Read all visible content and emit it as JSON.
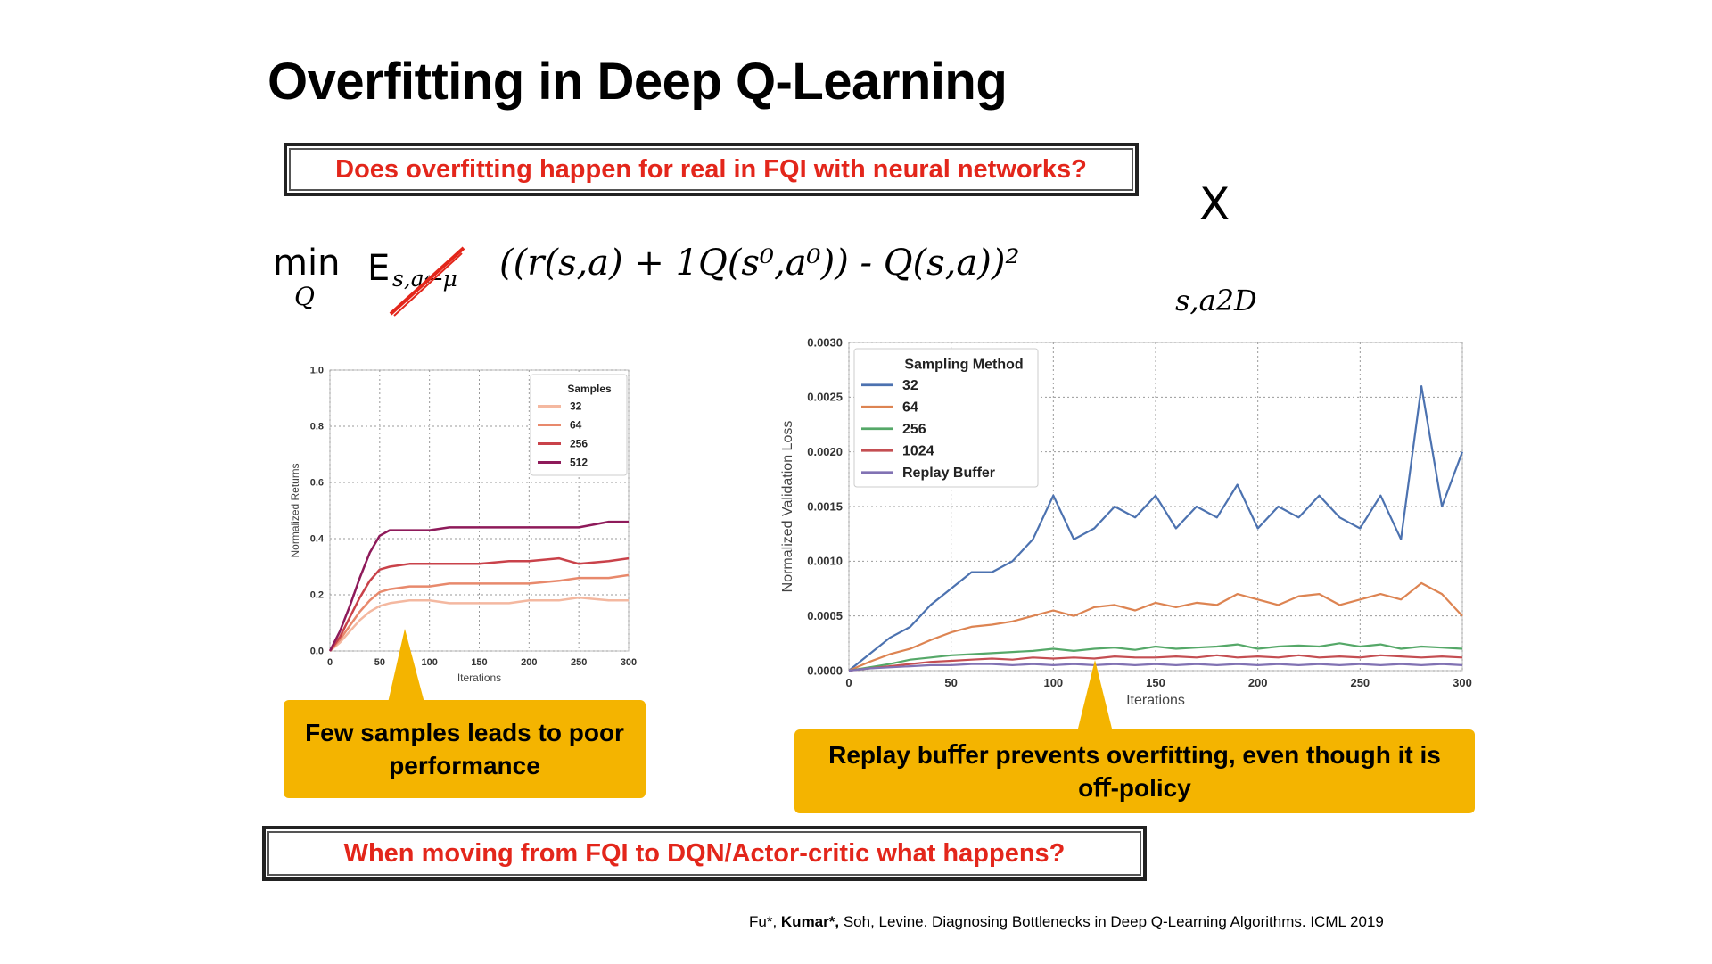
{
  "slide": {
    "title": "Overfitting in Deep Q-Learning",
    "question_top": "Does overfitting happen for real in FQI with neural networks?",
    "question_bottom": "When moving from FQI to DQN/Actor-critic what happens?",
    "callout_left": "Few samples leads to poor performance",
    "callout_right": "Replay buﬀer prevents overfitting, even though it is oﬀ-policy",
    "citation_prefix": "Fu*, ",
    "citation_bold": "Kumar*,",
    "citation_rest": " Soh, Levine. Diagnosing Bottlenecks in Deep Q-Learning Algorithms. ICML 2019",
    "equation": {
      "min": "min",
      "min_sub": "Q",
      "expectation": "E",
      "exp_sub": "s,a←μ",
      "body": "((r(s,a) + 1Q(s⁰,a⁰)) -  Q(s,a))²",
      "sum_symbol": "X",
      "sum_sub": "s,a2D"
    },
    "colors": {
      "question_red": "#e3261b",
      "callout_yellow": "#f4b400",
      "strike_red": "#e3261b"
    }
  },
  "chart_data": [
    {
      "type": "line",
      "xlabel": "Iterations",
      "ylabel": "Normalized Returns",
      "xlim": [
        0,
        300
      ],
      "ylim": [
        0,
        1.0
      ],
      "xticks": [
        "0",
        "50",
        "100",
        "150",
        "200",
        "250",
        "300"
      ],
      "yticks": [
        "0.0",
        "0.2",
        "0.4",
        "0.6",
        "0.8",
        "1.0"
      ],
      "legend_title": "Samples",
      "legend_position": "top-right",
      "grid": true,
      "x": [
        0,
        10,
        20,
        30,
        40,
        50,
        60,
        80,
        100,
        120,
        150,
        180,
        200,
        230,
        250,
        280,
        300
      ],
      "series": [
        {
          "name": "32",
          "color": "#f4b8a0",
          "values": [
            0.0,
            0.03,
            0.07,
            0.11,
            0.14,
            0.16,
            0.17,
            0.18,
            0.18,
            0.17,
            0.17,
            0.17,
            0.18,
            0.18,
            0.19,
            0.18,
            0.18
          ]
        },
        {
          "name": "64",
          "color": "#e8896c",
          "values": [
            0.0,
            0.04,
            0.09,
            0.14,
            0.18,
            0.21,
            0.22,
            0.23,
            0.23,
            0.24,
            0.24,
            0.24,
            0.24,
            0.25,
            0.26,
            0.26,
            0.27
          ]
        },
        {
          "name": "256",
          "color": "#c9424a",
          "values": [
            0.0,
            0.05,
            0.12,
            0.19,
            0.25,
            0.29,
            0.3,
            0.31,
            0.31,
            0.31,
            0.31,
            0.32,
            0.32,
            0.33,
            0.31,
            0.32,
            0.33
          ]
        },
        {
          "name": "512",
          "color": "#8e1a5a",
          "values": [
            0.0,
            0.07,
            0.16,
            0.26,
            0.35,
            0.41,
            0.43,
            0.43,
            0.43,
            0.44,
            0.44,
            0.44,
            0.44,
            0.44,
            0.44,
            0.46,
            0.46
          ]
        }
      ]
    },
    {
      "type": "line",
      "xlabel": "Iterations",
      "ylabel": "Normalized Validation Loss",
      "xlim": [
        0,
        300
      ],
      "ylim": [
        0,
        0.003
      ],
      "xticks": [
        "0",
        "50",
        "100",
        "150",
        "200",
        "250",
        "300"
      ],
      "yticks": [
        "0.0000",
        "0.0005",
        "0.0010",
        "0.0015",
        "0.0020",
        "0.0025",
        "0.0030"
      ],
      "legend_title": "Sampling Method",
      "legend_position": "top-left",
      "grid": true,
      "x": [
        0,
        10,
        20,
        30,
        40,
        50,
        60,
        70,
        80,
        90,
        100,
        110,
        120,
        130,
        140,
        150,
        160,
        170,
        180,
        190,
        200,
        210,
        220,
        230,
        240,
        250,
        260,
        270,
        280,
        290,
        300
      ],
      "series": [
        {
          "name": "32",
          "color": "#4c72b0",
          "values": [
            0.0,
            0.00015,
            0.0003,
            0.0004,
            0.0006,
            0.00075,
            0.0009,
            0.0009,
            0.001,
            0.0012,
            0.0016,
            0.0012,
            0.0013,
            0.0015,
            0.0014,
            0.0016,
            0.0013,
            0.0015,
            0.0014,
            0.0017,
            0.0013,
            0.0015,
            0.0014,
            0.0016,
            0.0014,
            0.0013,
            0.0016,
            0.0012,
            0.0026,
            0.0015,
            0.002
          ]
        },
        {
          "name": "64",
          "color": "#dd8452",
          "values": [
            0.0,
            8e-05,
            0.00015,
            0.0002,
            0.00028,
            0.00035,
            0.0004,
            0.00042,
            0.00045,
            0.0005,
            0.00055,
            0.0005,
            0.00058,
            0.0006,
            0.00055,
            0.00062,
            0.00058,
            0.00062,
            0.0006,
            0.0007,
            0.00065,
            0.0006,
            0.00068,
            0.0007,
            0.0006,
            0.00065,
            0.0007,
            0.00065,
            0.0008,
            0.0007,
            0.0005
          ]
        },
        {
          "name": "256",
          "color": "#55a868",
          "values": [
            0.0,
            3e-05,
            6e-05,
            0.0001,
            0.00012,
            0.00014,
            0.00015,
            0.00016,
            0.00017,
            0.00018,
            0.0002,
            0.00018,
            0.0002,
            0.00021,
            0.00019,
            0.00022,
            0.0002,
            0.00021,
            0.00022,
            0.00024,
            0.0002,
            0.00022,
            0.00023,
            0.00022,
            0.00025,
            0.00022,
            0.00024,
            0.0002,
            0.00022,
            0.00021,
            0.0002
          ]
        },
        {
          "name": "1024",
          "color": "#c44e52",
          "values": [
            0.0,
            2e-05,
            4e-05,
            6e-05,
            8e-05,
            9e-05,
            0.0001,
            0.00011,
            0.0001,
            0.00012,
            0.00011,
            0.00012,
            0.00011,
            0.00013,
            0.00012,
            0.00012,
            0.00013,
            0.00012,
            0.00014,
            0.00012,
            0.00013,
            0.00012,
            0.00014,
            0.00012,
            0.00013,
            0.00012,
            0.00014,
            0.00013,
            0.00012,
            0.00013,
            0.00012
          ]
        },
        {
          "name": "Replay Buffer",
          "color": "#8172b3",
          "values": [
            0.0,
            2e-05,
            3e-05,
            4e-05,
            5e-05,
            5e-05,
            6e-05,
            6e-05,
            5e-05,
            6e-05,
            5e-05,
            6e-05,
            5e-05,
            6e-05,
            5e-05,
            6e-05,
            5e-05,
            6e-05,
            5e-05,
            6e-05,
            5e-05,
            6e-05,
            5e-05,
            6e-05,
            5e-05,
            6e-05,
            5e-05,
            6e-05,
            5e-05,
            6e-05,
            5e-05
          ]
        }
      ]
    }
  ]
}
